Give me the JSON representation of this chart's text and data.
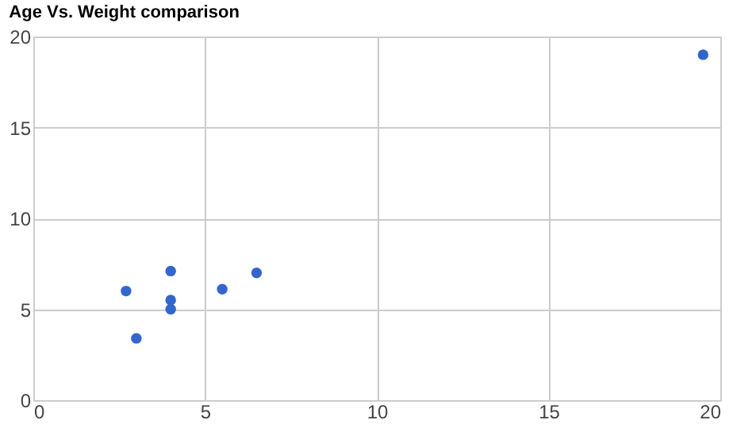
{
  "chart_data": {
    "type": "scatter",
    "title": "Age Vs. Weight comparison",
    "x": [
      2.7,
      4.0,
      4.0,
      4.0,
      3.0,
      5.5,
      6.5,
      19.5
    ],
    "series": [
      {
        "color": "#3366cc",
        "values": [
          6.0,
          7.1,
          5.5,
          5.0,
          3.4,
          6.1,
          7.0,
          19.0
        ]
      }
    ],
    "xlim": [
      0,
      20
    ],
    "xticks": [
      0,
      5,
      10,
      15,
      20
    ],
    "ylim": [
      0,
      20
    ],
    "yticks": [
      0,
      5,
      10,
      15,
      20
    ],
    "grid": true,
    "marker": "circle",
    "legend": false
  }
}
